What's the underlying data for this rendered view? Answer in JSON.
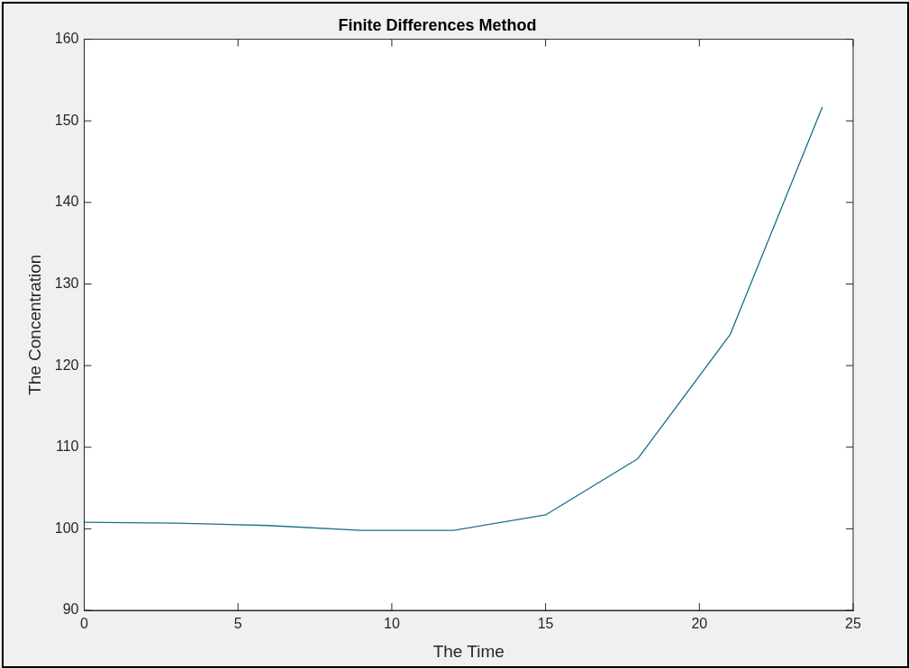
{
  "chart_data": {
    "type": "line",
    "title": "Finite Differences Method",
    "xlabel": "The Time",
    "ylabel": "The Concentration",
    "x": [
      0,
      3,
      6,
      9,
      12,
      15,
      18,
      21,
      24
    ],
    "series": [
      {
        "color": "#1a6f8a",
        "values": [
          100.8,
          100.7,
          100.4,
          99.8,
          99.8,
          101.7,
          108.6,
          123.8,
          151.7
        ]
      }
    ],
    "xlim": [
      0,
      25
    ],
    "xticks": [
      0,
      5,
      10,
      15,
      20,
      25
    ],
    "ylim": [
      90,
      160
    ],
    "yticks": [
      90,
      100,
      110,
      120,
      130,
      140,
      150,
      160
    ],
    "grid": false,
    "legend": false,
    "marker": "none",
    "line_style": "solid"
  }
}
